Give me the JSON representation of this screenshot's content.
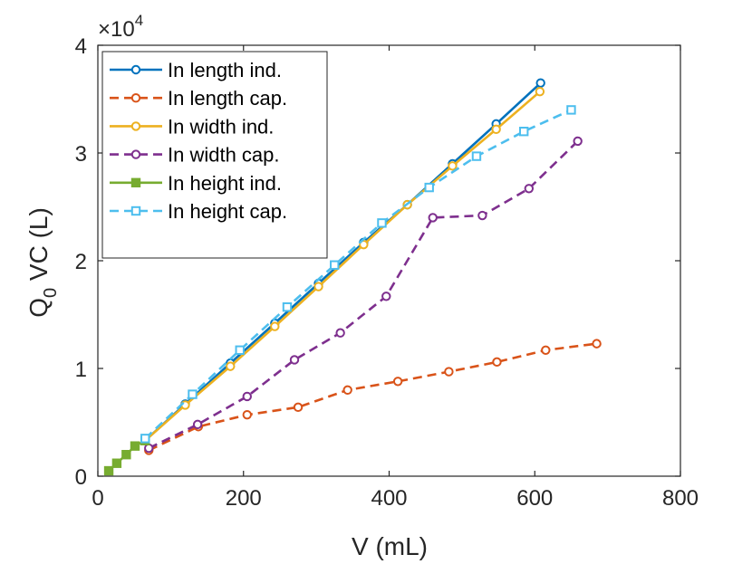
{
  "chart_data": {
    "type": "line",
    "title": "",
    "xlabel": "V (mL)",
    "ylabel_main": "Q",
    "ylabel_sub": "0",
    "ylabel_rest": " VC (L)",
    "exponent_prefix": "×10",
    "exponent_power": "4",
    "xlim": [
      0,
      800
    ],
    "ylim": [
      0,
      40000
    ],
    "xticks": [
      0,
      200,
      400,
      600,
      800
    ],
    "yticks": [
      0,
      10000,
      20000,
      30000,
      40000
    ],
    "xtick_labels": [
      "0",
      "200",
      "400",
      "600",
      "800"
    ],
    "ytick_labels": [
      "0",
      "1",
      "2",
      "3",
      "4"
    ],
    "legend_position": "top-left",
    "series": [
      {
        "name": "In length ind.",
        "color": "#0072BD",
        "dash": "solid",
        "marker": "circle",
        "x": [
          65,
          120,
          182,
          243,
          303,
          365,
          425,
          487,
          547,
          608
        ],
        "y": [
          3300,
          6700,
          10500,
          14200,
          17900,
          21700,
          25200,
          29000,
          32700,
          36500
        ]
      },
      {
        "name": "In length cap.",
        "color": "#D95319",
        "dash": "dashed",
        "marker": "circle",
        "x": [
          70,
          138,
          205,
          275,
          343,
          412,
          482,
          548,
          615,
          685
        ],
        "y": [
          2400,
          4600,
          5700,
          6400,
          8000,
          8800,
          9700,
          10600,
          11700,
          12300
        ]
      },
      {
        "name": "In width ind.",
        "color": "#EDB120",
        "dash": "solid",
        "marker": "circle",
        "x": [
          65,
          120,
          182,
          243,
          303,
          365,
          425,
          487,
          547,
          607
        ],
        "y": [
          3300,
          6600,
          10200,
          13900,
          17600,
          21500,
          25200,
          28800,
          32200,
          35700
        ]
      },
      {
        "name": "In width cap.",
        "color": "#7E2F8E",
        "dash": "dashed",
        "marker": "circle",
        "x": [
          70,
          137,
          205,
          270,
          333,
          396,
          460,
          528,
          592,
          659
        ],
        "y": [
          2600,
          4800,
          7400,
          10800,
          13300,
          16700,
          24000,
          24200,
          26700,
          31100
        ]
      },
      {
        "name": "In height ind.",
        "color": "#77AC30",
        "dash": "solid",
        "marker": "square",
        "x": [
          15,
          26,
          39,
          51,
          65
        ],
        "y": [
          500,
          1200,
          2000,
          2800,
          3300
        ]
      },
      {
        "name": "In height cap.",
        "color": "#4DBEEE",
        "dash": "dashed",
        "marker": "square",
        "x": [
          65,
          130,
          195,
          260,
          325,
          390,
          455,
          520,
          585,
          650
        ],
        "y": [
          3500,
          7600,
          11700,
          15700,
          19600,
          23500,
          26800,
          29700,
          32000,
          34000
        ]
      }
    ]
  }
}
